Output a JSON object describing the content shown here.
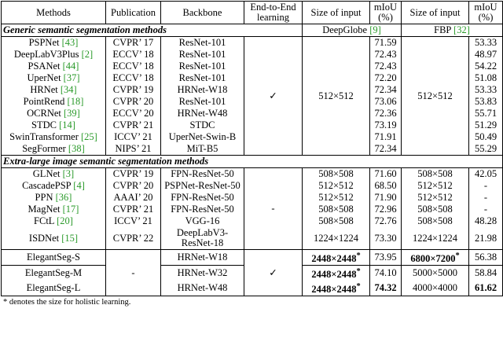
{
  "header": {
    "columns": [
      "Methods",
      "Publication",
      "Backbone",
      "End-to-End learning",
      "Size of input",
      "mIoU (%)",
      "Size of input",
      "mIoU (%)"
    ]
  },
  "sections": [
    {
      "title": "Generic semantic segmentation methods",
      "datasets": [
        {
          "name": "DeepGlobe",
          "ref": "[9]"
        },
        {
          "name": "FBP",
          "ref": "[32]"
        }
      ],
      "shared": {
        "end_to_end": "✓",
        "size_dg": "512×512",
        "size_fbp": "512×512"
      },
      "rows": [
        {
          "method": "PSPNet",
          "ref": "[43]",
          "publication": "CVPR’ 17",
          "backbone": "ResNet-101",
          "miou_dg": "71.59",
          "miou_fbp": "53.33"
        },
        {
          "method": "DeepLabV3Plus",
          "ref": "[2]",
          "publication": "ECCV’ 18",
          "backbone": "ResNet-101",
          "miou_dg": "72.43",
          "miou_fbp": "48.97"
        },
        {
          "method": "PSANet",
          "ref": "[44]",
          "publication": "ECCV’ 18",
          "backbone": "ResNet-101",
          "miou_dg": "72.43",
          "miou_fbp": "54.22"
        },
        {
          "method": "UperNet",
          "ref": "[37]",
          "publication": "ECCV’ 18",
          "backbone": "ResNet-101",
          "miou_dg": "72.20",
          "miou_fbp": "51.08"
        },
        {
          "method": "HRNet",
          "ref": "[34]",
          "publication": "CVPR’ 19",
          "backbone": "HRNet-W18",
          "miou_dg": "72.34",
          "miou_fbp": "53.33"
        },
        {
          "method": "PointRend",
          "ref": "[18]",
          "publication": "CVPR’ 20",
          "backbone": "ResNet-101",
          "miou_dg": "73.06",
          "miou_fbp": "53.83"
        },
        {
          "method": "OCRNet",
          "ref": "[39]",
          "publication": "ECCV’ 20",
          "backbone": "HRNet-W48",
          "miou_dg": "72.36",
          "miou_fbp": "55.71"
        },
        {
          "method": "STDC",
          "ref": "[14]",
          "publication": "CVPR’ 21",
          "backbone": "STDC",
          "miou_dg": "73.19",
          "miou_fbp": "51.29"
        },
        {
          "method": "SwinTransformer",
          "ref": "[25]",
          "publication": "ICCV’ 21",
          "backbone": "UperNet-Swin-B",
          "miou_dg": "71.91",
          "miou_fbp": "50.49"
        },
        {
          "method": "SegFormer",
          "ref": "[38]",
          "publication": "NIPS’ 21",
          "backbone": "MiT-B5",
          "miou_dg": "72.34",
          "miou_fbp": "55.29"
        }
      ]
    },
    {
      "title": "Extra-large image semantic segmentation methods",
      "shared": {
        "end_to_end": "-"
      },
      "rows": [
        {
          "method": "GLNet",
          "ref": "[3]",
          "publication": "CVPR’ 19",
          "backbone": "FPN-ResNet-50",
          "size_dg": "508×508",
          "miou_dg": "71.60",
          "size_fbp": "508×508",
          "miou_fbp": "42.05"
        },
        {
          "method": "CascadePSP",
          "ref": "[4]",
          "publication": "CVPR’ 20",
          "backbone": "PSPNet-ResNet-50",
          "size_dg": "512×512",
          "miou_dg": "68.50",
          "size_fbp": "512×512",
          "miou_fbp": "-"
        },
        {
          "method": "PPN",
          "ref": "[36]",
          "publication": "AAAI’ 20",
          "backbone": "FPN-ResNet-50",
          "size_dg": "512×512",
          "miou_dg": "71.90",
          "size_fbp": "512×512",
          "miou_fbp": "-"
        },
        {
          "method": "MagNet",
          "ref": "[17]",
          "publication": "CVPR’ 21",
          "backbone": "FPN-ResNet-50",
          "size_dg": "508×508",
          "miou_dg": "72.96",
          "size_fbp": "508×508",
          "miou_fbp": "-"
        },
        {
          "method": "FCtL",
          "ref": "[20]",
          "publication": "ICCV’ 21",
          "backbone": "VGG-16",
          "size_dg": "508×508",
          "miou_dg": "72.76",
          "size_fbp": "508×508",
          "miou_fbp": "48.28"
        },
        {
          "method": "ISDNet",
          "ref": "[15]",
          "publication": "CVPR’ 22",
          "backbone": "DeepLabV3-ResNet-18",
          "size_dg": "1224×1224",
          "miou_dg": "73.30",
          "size_fbp": "1224×1224",
          "miou_fbp": "21.98"
        }
      ]
    },
    {
      "shared": {
        "publication": "-",
        "end_to_end": "✓"
      },
      "rows": [
        {
          "method": "ElegantSeg-S",
          "backbone": "HRNet-W18",
          "size_dg": "2448×2448",
          "size_dg_mark": "*",
          "miou_dg": "73.95",
          "size_fbp": "6800×7200",
          "size_fbp_mark": "*",
          "miou_fbp": "56.38",
          "bold": [
            "size_dg",
            "size_fbp"
          ]
        },
        {
          "method": "ElegantSeg-M",
          "backbone": "HRNet-W32",
          "size_dg": "2448×2448",
          "size_dg_mark": "*",
          "miou_dg": "74.10",
          "size_fbp": "5000×5000",
          "miou_fbp": "58.84",
          "bold": [
            "size_dg"
          ]
        },
        {
          "method": "ElegantSeg-L",
          "backbone": "HRNet-W48",
          "size_dg": "2448×2448",
          "size_dg_mark": "*",
          "miou_dg": "74.32",
          "size_fbp": "4000×4000",
          "miou_fbp": "61.62",
          "bold": [
            "size_dg",
            "miou_dg",
            "miou_fbp"
          ]
        }
      ]
    }
  ],
  "footnote": "* denotes the size for holistic learning."
}
